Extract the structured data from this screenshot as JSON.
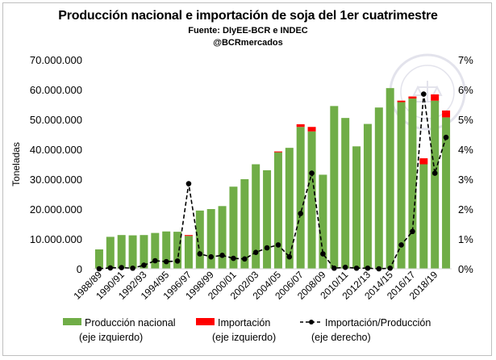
{
  "header": {
    "title": "Producción nacional e importación de soja del 1er cuatrimestre",
    "source": "Fuente: DIyEE-BCR e INDEC",
    "handle": "@BCRmercados"
  },
  "colors": {
    "production": "#70ad47",
    "import": "#ff0000",
    "ratio": "#000000"
  },
  "chart_data": {
    "type": "bar",
    "title": "Producción nacional e importación de soja del 1er cuatrimestre",
    "ylabel": "Toneladas",
    "ylim": [
      0,
      70000000
    ],
    "y2lim": [
      0,
      7
    ],
    "yticks_left": [
      "0",
      "10.000.000",
      "20.000.000",
      "30.000.000",
      "40.000.000",
      "50.000.000",
      "60.000.000",
      "70.000.000"
    ],
    "yticks_right": [
      "0%",
      "1%",
      "2%",
      "3%",
      "4%",
      "5%",
      "6%",
      "7%"
    ],
    "categories": [
      "1988/89",
      "1989/90",
      "1990/91",
      "1991/92",
      "1992/93",
      "1993/94",
      "1994/95",
      "1995/96",
      "1996/97",
      "1997/98",
      "1998/99",
      "1999/00",
      "2000/01",
      "2001/02",
      "2002/03",
      "2003/04",
      "2004/05",
      "2005/06",
      "2006/07",
      "2007/08",
      "2008/09",
      "2009/10",
      "2010/11",
      "2011/12",
      "2012/13",
      "2013/14",
      "2014/15",
      "2015/16",
      "2016/17",
      "2017/18",
      "2018/19",
      "2019/20"
    ],
    "xtick_labels": [
      "1988/89",
      "1990/91",
      "1992/93",
      "1994/95",
      "1996/97",
      "1998/99",
      "2000/01",
      "2002/03",
      "2004/05",
      "2006/07",
      "2008/09",
      "2010/11",
      "2012/13",
      "2014/15",
      "2016/17",
      "2018/19"
    ],
    "series": [
      {
        "name": "Producción nacional\n(eje izquierdo)",
        "axis": "left",
        "kind": "bar",
        "values": [
          6500000,
          10700000,
          11300000,
          11200000,
          11300000,
          12000000,
          12500000,
          12400000,
          11000000,
          19500000,
          20000000,
          21000000,
          27500000,
          30000000,
          35000000,
          33000000,
          39000000,
          40500000,
          47500000,
          46000000,
          31500000,
          54500000,
          50500000,
          41000000,
          48500000,
          54000000,
          60500000,
          55800000,
          57000000,
          35000000,
          56300000,
          50700000
        ]
      },
      {
        "name": "Importación\n(eje izquierdo)",
        "axis": "left",
        "kind": "bar-stack",
        "values": [
          0,
          0,
          0,
          0,
          0,
          0,
          0,
          0,
          300000,
          0,
          0,
          0,
          0,
          0,
          0,
          0,
          300000,
          0,
          900000,
          1500000,
          0,
          0,
          0,
          0,
          0,
          0,
          0,
          500000,
          700000,
          2000000,
          2100000,
          2300000
        ]
      },
      {
        "name": "Importación/Producción\n(eje derecho)",
        "axis": "right",
        "kind": "line-dashed-markers",
        "values": [
          0.0,
          0.03,
          0.04,
          0.02,
          0.12,
          0.27,
          0.24,
          0.26,
          2.85,
          0.5,
          0.4,
          0.45,
          0.35,
          0.33,
          0.55,
          0.7,
          0.8,
          0.4,
          1.85,
          3.2,
          0.5,
          0.02,
          0.05,
          0.02,
          0.02,
          0.0,
          0.02,
          0.8,
          1.25,
          5.85,
          3.2,
          4.4
        ]
      }
    ],
    "legend": "bottom",
    "grid": false
  }
}
